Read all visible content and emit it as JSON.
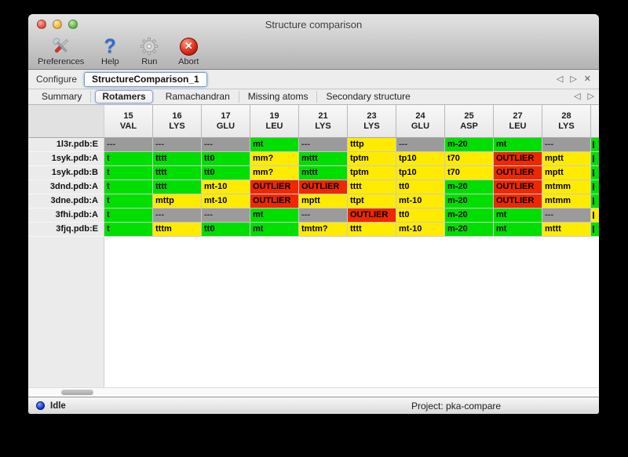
{
  "window": {
    "title": "Structure comparison"
  },
  "toolbar": {
    "items": [
      {
        "label": "Preferences",
        "icon": "tools-icon"
      },
      {
        "label": "Help",
        "icon": "question-icon"
      },
      {
        "label": "Run",
        "icon": "gear-icon"
      },
      {
        "label": "Abort",
        "icon": "abort-x-icon"
      }
    ]
  },
  "configure": {
    "label": "Configure",
    "value": "StructureComparison_1"
  },
  "nav_icons": {
    "prev": "◁",
    "next": "▷",
    "close": "✕"
  },
  "tabs": {
    "labels": [
      "Summary",
      "Rotamers",
      "Ramachandran",
      "Missing atoms",
      "Secondary structure"
    ],
    "selected_index": 1
  },
  "colors": {
    "green": "#00df00",
    "yellow": "#ffeb00",
    "red": "#ee2800",
    "gray": "#9b9b9b"
  },
  "table": {
    "columns": [
      {
        "num": "15",
        "res": "VAL"
      },
      {
        "num": "16",
        "res": "LYS"
      },
      {
        "num": "17",
        "res": "GLU"
      },
      {
        "num": "19",
        "res": "LEU"
      },
      {
        "num": "21",
        "res": "LYS"
      },
      {
        "num": "23",
        "res": "LYS"
      },
      {
        "num": "24",
        "res": "GLU"
      },
      {
        "num": "25",
        "res": "ASP"
      },
      {
        "num": "27",
        "res": "LEU"
      },
      {
        "num": "28",
        "res": "LYS"
      }
    ],
    "rows": [
      {
        "label": "1l3r.pdb:E",
        "cells": [
          {
            "t": "---",
            "c": "gray"
          },
          {
            "t": "---",
            "c": "gray"
          },
          {
            "t": "---",
            "c": "gray"
          },
          {
            "t": "mt",
            "c": "green"
          },
          {
            "t": "---",
            "c": "gray"
          },
          {
            "t": "tttp",
            "c": "yellow"
          },
          {
            "t": "---",
            "c": "gray"
          },
          {
            "t": "m-20",
            "c": "green"
          },
          {
            "t": "mt",
            "c": "green"
          },
          {
            "t": "---",
            "c": "gray"
          }
        ],
        "edge_color": "green"
      },
      {
        "label": "1syk.pdb:A",
        "cells": [
          {
            "t": "t",
            "c": "green"
          },
          {
            "t": "tttt",
            "c": "green"
          },
          {
            "t": "tt0",
            "c": "green"
          },
          {
            "t": "mm?",
            "c": "yellow"
          },
          {
            "t": "mttt",
            "c": "green"
          },
          {
            "t": "tptm",
            "c": "yellow"
          },
          {
            "t": "tp10",
            "c": "yellow"
          },
          {
            "t": "t70",
            "c": "yellow"
          },
          {
            "t": "OUTLIER",
            "c": "red"
          },
          {
            "t": "mptt",
            "c": "yellow"
          }
        ],
        "edge_color": "green"
      },
      {
        "label": "1syk.pdb:B",
        "cells": [
          {
            "t": "t",
            "c": "green"
          },
          {
            "t": "tttt",
            "c": "green"
          },
          {
            "t": "tt0",
            "c": "green"
          },
          {
            "t": "mm?",
            "c": "yellow"
          },
          {
            "t": "mttt",
            "c": "green"
          },
          {
            "t": "tptm",
            "c": "yellow"
          },
          {
            "t": "tp10",
            "c": "yellow"
          },
          {
            "t": "t70",
            "c": "yellow"
          },
          {
            "t": "OUTLIER",
            "c": "red"
          },
          {
            "t": "mptt",
            "c": "yellow"
          }
        ],
        "edge_color": "green"
      },
      {
        "label": "3dnd.pdb:A",
        "cells": [
          {
            "t": "t",
            "c": "green"
          },
          {
            "t": "tttt",
            "c": "green"
          },
          {
            "t": "mt-10",
            "c": "yellow"
          },
          {
            "t": "OUTLIER",
            "c": "red"
          },
          {
            "t": "OUTLIER",
            "c": "red"
          },
          {
            "t": "tttt",
            "c": "yellow"
          },
          {
            "t": "tt0",
            "c": "yellow"
          },
          {
            "t": "m-20",
            "c": "green"
          },
          {
            "t": "OUTLIER",
            "c": "red"
          },
          {
            "t": "mtmm",
            "c": "yellow"
          }
        ],
        "edge_color": "green"
      },
      {
        "label": "3dne.pdb:A",
        "cells": [
          {
            "t": "t",
            "c": "green"
          },
          {
            "t": "mttp",
            "c": "yellow"
          },
          {
            "t": "mt-10",
            "c": "yellow"
          },
          {
            "t": "OUTLIER",
            "c": "red"
          },
          {
            "t": "mptt",
            "c": "yellow"
          },
          {
            "t": "ttpt",
            "c": "yellow"
          },
          {
            "t": "mt-10",
            "c": "yellow"
          },
          {
            "t": "m-20",
            "c": "green"
          },
          {
            "t": "OUTLIER",
            "c": "red"
          },
          {
            "t": "mtmm",
            "c": "yellow"
          }
        ],
        "edge_color": "green"
      },
      {
        "label": "3fhi.pdb:A",
        "cells": [
          {
            "t": "t",
            "c": "green"
          },
          {
            "t": "---",
            "c": "gray"
          },
          {
            "t": "---",
            "c": "gray"
          },
          {
            "t": "mt",
            "c": "green"
          },
          {
            "t": "---",
            "c": "gray"
          },
          {
            "t": "OUTLIER",
            "c": "red"
          },
          {
            "t": "tt0",
            "c": "yellow"
          },
          {
            "t": "m-20",
            "c": "green"
          },
          {
            "t": "mt",
            "c": "green"
          },
          {
            "t": "---",
            "c": "gray"
          }
        ],
        "edge_color": "yellow"
      },
      {
        "label": "3fjq.pdb:E",
        "cells": [
          {
            "t": "t",
            "c": "green"
          },
          {
            "t": "tttm",
            "c": "yellow"
          },
          {
            "t": "tt0",
            "c": "green"
          },
          {
            "t": "mt",
            "c": "green"
          },
          {
            "t": "tmtm?",
            "c": "yellow"
          },
          {
            "t": "tttt",
            "c": "yellow"
          },
          {
            "t": "mt-10",
            "c": "yellow"
          },
          {
            "t": "m-20",
            "c": "green"
          },
          {
            "t": "mt",
            "c": "green"
          },
          {
            "t": "mttt",
            "c": "yellow"
          }
        ],
        "edge_color": "green"
      }
    ],
    "edge_column_colors": [
      "green",
      "green",
      "green",
      "green",
      "green",
      "yellow",
      "green"
    ]
  },
  "statusbar": {
    "status": "Idle",
    "project": "Project: pka-compare"
  }
}
